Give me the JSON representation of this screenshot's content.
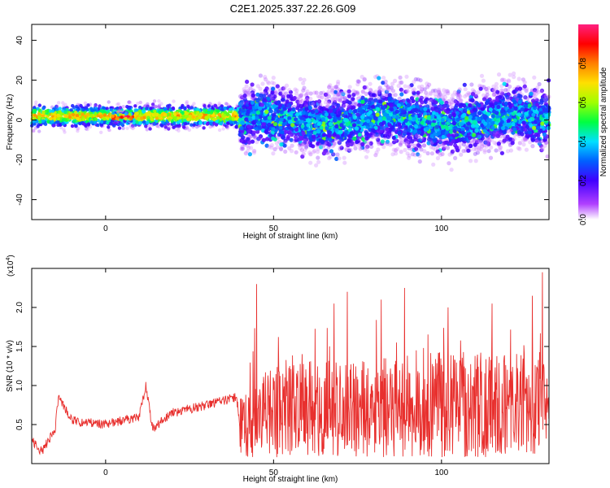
{
  "title": "C2E1.2025.337.22.26.G09",
  "chart_data": [
    {
      "type": "heatmap",
      "xlabel": "Height of straight line (km)",
      "ylabel": "Frequency (Hz)",
      "xlim": [
        -22,
        132
      ],
      "ylim": [
        -50,
        48
      ],
      "xticks": [
        0,
        50,
        100
      ],
      "yticks": [
        -40,
        -20,
        0,
        20,
        40
      ],
      "colorbar": {
        "label": "Normalized spectral amplitude",
        "range": [
          0,
          1
        ],
        "ticks": [
          0.0,
          0.2,
          0.4,
          0.6,
          0.8
        ]
      },
      "bands": [
        {
          "x": [
            -22,
            40
          ],
          "center_hz": 2,
          "halfwidth_hz": 3,
          "amplitude": 0.7
        },
        {
          "x": [
            2,
            8
          ],
          "center_hz": 1.5,
          "halfwidth_hz": 1.2,
          "amplitude": 0.95
        },
        {
          "x": [
            40,
            132
          ],
          "center_hz": 0,
          "halfwidth_hz": 8,
          "amplitude": 0.35
        }
      ]
    },
    {
      "type": "line",
      "xlabel": "Height of straight line (km)",
      "ylabel": "SNR (10 * v/v)",
      "y_multiplier": "(x10",
      "y_multiplier_exp": "4",
      "y_multiplier_close": ")",
      "xlim": [
        -22,
        132
      ],
      "ylim": [
        0,
        2.5
      ],
      "xticks": [
        0,
        50,
        100
      ],
      "yticks": [
        0.5,
        1.0,
        1.5,
        2.0
      ],
      "color": "#e8302e",
      "envelope": [
        {
          "x": -22,
          "y": 0.3
        },
        {
          "x": -19,
          "y": 0.15
        },
        {
          "x": -15,
          "y": 0.45
        },
        {
          "x": -14,
          "y": 0.85
        },
        {
          "x": -10,
          "y": 0.55
        },
        {
          "x": 0,
          "y": 0.5
        },
        {
          "x": 10,
          "y": 0.6
        },
        {
          "x": 12,
          "y": 1.0
        },
        {
          "x": 14,
          "y": 0.45
        },
        {
          "x": 20,
          "y": 0.65
        },
        {
          "x": 30,
          "y": 0.75
        },
        {
          "x": 39,
          "y": 0.85
        },
        {
          "x": 40,
          "y": 0.5
        },
        {
          "x": 50,
          "y": 0.8
        },
        {
          "x": 100,
          "y": 0.9
        },
        {
          "x": 132,
          "y": 0.9
        }
      ],
      "peaks": [
        {
          "x": 45,
          "y": 2.3
        },
        {
          "x": 68,
          "y": 2.05
        },
        {
          "x": 72,
          "y": 2.2
        },
        {
          "x": 82,
          "y": 2.1
        },
        {
          "x": 89,
          "y": 2.25
        },
        {
          "x": 102,
          "y": 2.0
        },
        {
          "x": 115,
          "y": 2.05
        },
        {
          "x": 127,
          "y": 2.15
        },
        {
          "x": 130,
          "y": 2.45
        }
      ]
    }
  ]
}
